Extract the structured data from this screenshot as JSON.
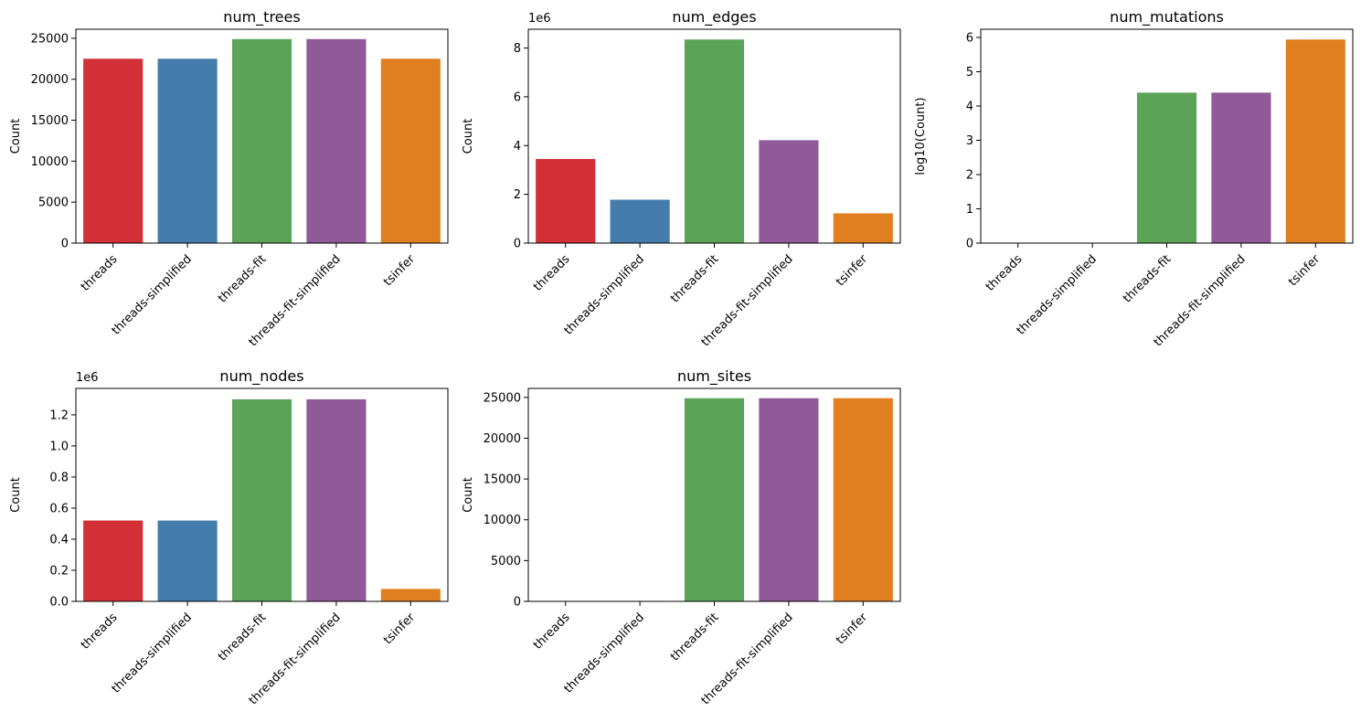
{
  "colors": {
    "threads": "#d03036",
    "threads-simplified": "#447dac",
    "threads-fit": "#5ba356",
    "threads-fit-simplified": "#905998",
    "tsinfer": "#e07f20"
  },
  "chart_data": [
    {
      "type": "bar",
      "title": "num_trees",
      "ylabel": "Count",
      "offset_label": "",
      "categories": [
        "threads",
        "threads-simplified",
        "threads-fit",
        "threads-fit-simplified",
        "tsinfer"
      ],
      "values": [
        22500,
        22500,
        24900,
        24900,
        22500
      ],
      "ylim": [
        0,
        26100
      ],
      "yticks": [
        0,
        5000,
        10000,
        15000,
        20000,
        25000
      ],
      "ytick_labels": [
        "0",
        "5000",
        "10000",
        "15000",
        "20000",
        "25000"
      ]
    },
    {
      "type": "bar",
      "title": "num_edges",
      "ylabel": "Count",
      "offset_label": "1e6",
      "categories": [
        "threads",
        "threads-simplified",
        "threads-fit",
        "threads-fit-simplified",
        "tsinfer"
      ],
      "values": [
        3.45,
        1.78,
        8.35,
        4.22,
        1.22
      ],
      "ylim": [
        0,
        8.77
      ],
      "yticks": [
        0,
        2,
        4,
        6,
        8
      ],
      "ytick_labels": [
        "0",
        "2",
        "4",
        "6",
        "8"
      ]
    },
    {
      "type": "bar",
      "title": "num_mutations",
      "ylabel": "log10(Count)",
      "offset_label": "",
      "categories": [
        "threads",
        "threads-simplified",
        "threads-fit",
        "threads-fit-simplified",
        "tsinfer"
      ],
      "values": [
        0,
        0,
        4.39,
        4.39,
        5.94
      ],
      "ylim": [
        0,
        6.24
      ],
      "yticks": [
        0,
        1,
        2,
        3,
        4,
        5,
        6
      ],
      "ytick_labels": [
        "0",
        "1",
        "2",
        "3",
        "4",
        "5",
        "6"
      ]
    },
    {
      "type": "bar",
      "title": "num_nodes",
      "ylabel": "Count",
      "offset_label": "1e6",
      "categories": [
        "threads",
        "threads-simplified",
        "threads-fit",
        "threads-fit-simplified",
        "tsinfer"
      ],
      "values": [
        0.52,
        0.52,
        1.3,
        1.3,
        0.08
      ],
      "ylim": [
        0,
        1.37
      ],
      "yticks": [
        0,
        0.2,
        0.4,
        0.6,
        0.8,
        1.0,
        1.2
      ],
      "ytick_labels": [
        "0.0",
        "0.2",
        "0.4",
        "0.6",
        "0.8",
        "1.0",
        "1.2"
      ]
    },
    {
      "type": "bar",
      "title": "num_sites",
      "ylabel": "Count",
      "offset_label": "",
      "categories": [
        "threads",
        "threads-simplified",
        "threads-fit",
        "threads-fit-simplified",
        "tsinfer"
      ],
      "values": [
        0,
        0,
        24900,
        24900,
        24900
      ],
      "ylim": [
        0,
        26100
      ],
      "yticks": [
        0,
        5000,
        10000,
        15000,
        20000,
        25000
      ],
      "ytick_labels": [
        "0",
        "5000",
        "10000",
        "15000",
        "20000",
        "25000"
      ]
    }
  ]
}
